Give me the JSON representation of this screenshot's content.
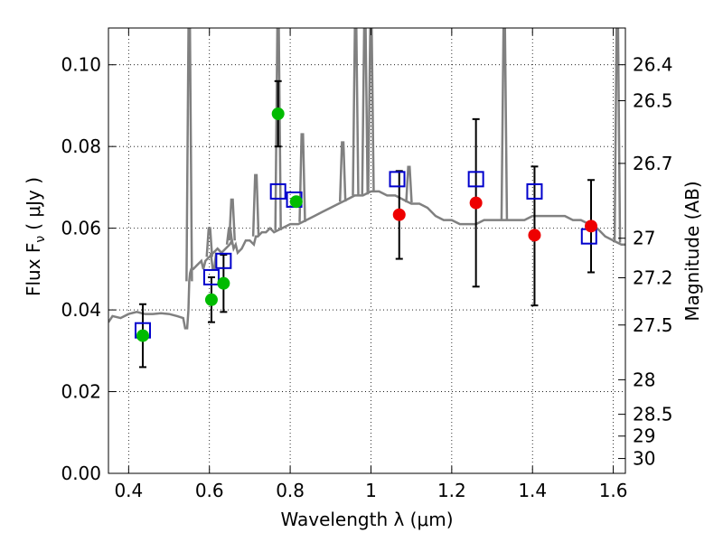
{
  "chart_data": {
    "type": "scatter",
    "xlabel": "Wavelength  λ (μm)",
    "ylabel": "Flux  F",
    "ylabel_sub": "ν",
    "ylabel_unit": "( μJy )",
    "y2label": "Magnitude (AB)",
    "xlim": [
      0.35,
      1.63
    ],
    "ylim": [
      0.0,
      0.109
    ],
    "grid": true,
    "x_ticks": [
      {
        "value": 0.4,
        "label": "0.4"
      },
      {
        "value": 0.6,
        "label": "0.6"
      },
      {
        "value": 0.8,
        "label": "0.8"
      },
      {
        "value": 1.0,
        "label": "1"
      },
      {
        "value": 1.2,
        "label": "1.2"
      },
      {
        "value": 1.4,
        "label": "1.4"
      },
      {
        "value": 1.6,
        "label": "1.6"
      }
    ],
    "y_ticks": [
      {
        "value": 0.0,
        "label": "0.00"
      },
      {
        "value": 0.02,
        "label": "0.02"
      },
      {
        "value": 0.04,
        "label": "0.04"
      },
      {
        "value": 0.06,
        "label": "0.06"
      },
      {
        "value": 0.08,
        "label": "0.08"
      },
      {
        "value": 0.1,
        "label": "0.10"
      }
    ],
    "y2_ticks": [
      {
        "value": 26.4,
        "label": "26.4"
      },
      {
        "value": 26.5,
        "label": "26.5"
      },
      {
        "value": 26.7,
        "label": "26.7"
      },
      {
        "value": 27.0,
        "label": "27"
      },
      {
        "value": 27.2,
        "label": "27.2"
      },
      {
        "value": 27.5,
        "label": "27.5"
      },
      {
        "value": 28.0,
        "label": "28"
      },
      {
        "value": 28.5,
        "label": "28.5"
      },
      {
        "value": 29.0,
        "label": "29"
      },
      {
        "value": 30.0,
        "label": "30"
      }
    ],
    "colors": {
      "model": "#808080",
      "green_points": "#00bb00",
      "red_points": "#ee0000",
      "squares": "#0000cc",
      "error_bars": "#000000"
    },
    "series": [
      {
        "kind": "model_spectrum",
        "x": [
          0.35,
          0.36,
          0.38,
          0.4,
          0.42,
          0.44,
          0.46,
          0.48,
          0.5,
          0.52,
          0.535,
          0.54,
          0.545,
          0.548,
          0.55,
          0.552,
          0.555,
          0.56,
          0.57,
          0.58,
          0.585,
          0.59,
          0.6,
          0.61,
          0.62,
          0.63,
          0.64,
          0.65,
          0.656,
          0.66,
          0.665,
          0.67,
          0.68,
          0.69,
          0.7,
          0.71,
          0.715,
          0.72,
          0.73,
          0.74,
          0.75,
          0.76,
          0.78,
          0.8,
          0.82,
          0.84,
          0.86,
          0.88,
          0.9,
          0.92,
          0.94,
          0.96,
          0.98,
          1.0,
          1.02,
          1.04,
          1.06,
          1.08,
          1.1,
          1.12,
          1.14,
          1.16,
          1.18,
          1.2,
          1.22,
          1.24,
          1.26,
          1.28,
          1.3,
          1.32,
          1.34,
          1.36,
          1.38,
          1.4,
          1.42,
          1.44,
          1.46,
          1.48,
          1.5,
          1.52,
          1.54,
          1.56,
          1.58,
          1.6,
          1.62,
          1.63
        ],
        "y": [
          0.037,
          0.0385,
          0.038,
          0.039,
          0.0395,
          0.039,
          0.039,
          0.0392,
          0.039,
          0.0385,
          0.038,
          0.0355,
          0.0355,
          0.04,
          0.047,
          0.049,
          0.05,
          0.05,
          0.051,
          0.052,
          0.05,
          0.052,
          0.053,
          0.054,
          0.055,
          0.054,
          0.055,
          0.056,
          0.057,
          0.055,
          0.056,
          0.054,
          0.055,
          0.057,
          0.057,
          0.056,
          0.058,
          0.058,
          0.059,
          0.059,
          0.06,
          0.059,
          0.06,
          0.061,
          0.061,
          0.062,
          0.063,
          0.064,
          0.065,
          0.066,
          0.067,
          0.068,
          0.068,
          0.069,
          0.069,
          0.068,
          0.068,
          0.067,
          0.066,
          0.066,
          0.065,
          0.063,
          0.062,
          0.062,
          0.061,
          0.061,
          0.061,
          0.062,
          0.062,
          0.062,
          0.062,
          0.062,
          0.062,
          0.063,
          0.063,
          0.063,
          0.063,
          0.063,
          0.062,
          0.062,
          0.061,
          0.06,
          0.058,
          0.057,
          0.056,
          0.056
        ]
      },
      {
        "kind": "emission_lines",
        "x": [
          0.55,
          0.6,
          0.61,
          0.65,
          0.656,
          0.715,
          0.77,
          0.83,
          0.93,
          0.962,
          0.985,
          1.0,
          1.094,
          1.33,
          1.61
        ],
        "y": [
          0.109,
          0.06,
          0.05,
          0.06,
          0.067,
          0.073,
          0.109,
          0.083,
          0.081,
          0.109,
          0.109,
          0.109,
          0.075,
          0.109,
          0.109
        ]
      },
      {
        "kind": "squares",
        "x": [
          0.435,
          0.605,
          0.635,
          0.77,
          0.81,
          1.065,
          1.26,
          1.405,
          1.54
        ],
        "y": [
          0.035,
          0.048,
          0.052,
          0.069,
          0.067,
          0.072,
          0.072,
          0.069,
          0.058
        ]
      },
      {
        "kind": "green_points",
        "x": [
          0.435,
          0.605,
          0.635,
          0.77,
          0.815
        ],
        "y": [
          0.0337,
          0.0425,
          0.0465,
          0.088,
          0.0665
        ],
        "err_low": [
          0.0077,
          0.0055,
          0.007,
          0.008,
          null
        ],
        "err_high": [
          0.0077,
          0.0055,
          0.007,
          0.008,
          null
        ]
      },
      {
        "kind": "red_points",
        "x": [
          1.07,
          1.26,
          1.405,
          1.545
        ],
        "y": [
          0.0633,
          0.0662,
          0.0583,
          0.0605
        ],
        "err_low": [
          0.0108,
          0.0205,
          0.0172,
          0.0113
        ],
        "err_high": [
          0.0107,
          0.0205,
          0.0168,
          0.0113
        ]
      }
    ]
  }
}
